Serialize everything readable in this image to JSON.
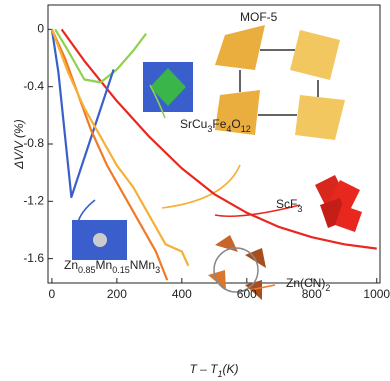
{
  "chart_data": {
    "type": "line",
    "ylabel": "ΔV/V (%)",
    "xlabel_parts": [
      {
        "text": "T – T"
      },
      {
        "text": "1",
        "sub": true
      },
      {
        "text": "(K)"
      }
    ],
    "xlim": [
      -12,
      1010
    ],
    "ylim": [
      -1.77,
      0.17
    ],
    "xticks": [
      0,
      200,
      400,
      600,
      800,
      1000
    ],
    "yticks": [
      0,
      -0.4,
      -0.8,
      -1.2,
      -1.6
    ],
    "series": [
      {
        "label_parts": [
          {
            "text": "ScF"
          },
          {
            "text": "3",
            "sub": true
          }
        ],
        "color": "#e8281e",
        "x": [
          30,
          100,
          200,
          300,
          400,
          500,
          600,
          700,
          800,
          900,
          1000
        ],
        "values": [
          0,
          -0.22,
          -0.5,
          -0.75,
          -0.97,
          -1.15,
          -1.28,
          -1.38,
          -1.45,
          -1.5,
          -1.53
        ]
      },
      {
        "label_parts": [
          {
            "text": "SrCu"
          },
          {
            "text": "3",
            "sub": true
          },
          {
            "text": "Fe"
          },
          {
            "text": "4",
            "sub": true
          },
          {
            "text": "O"
          },
          {
            "text": "12",
            "sub": true
          }
        ],
        "color": "#8fd14f",
        "x": [
          10,
          50,
          100,
          150,
          200,
          250,
          290
        ],
        "values": [
          0,
          -0.15,
          -0.35,
          -0.37,
          -0.28,
          -0.15,
          -0.03
        ]
      },
      {
        "label_parts": [
          {
            "text": "Zn"
          },
          {
            "text": "0.85",
            "sub": true
          },
          {
            "text": "Mn"
          },
          {
            "text": "0.15",
            "sub": true
          },
          {
            "text": "NMn"
          },
          {
            "text": "3",
            "sub": true
          }
        ],
        "color": "#3a5fcd",
        "x": [
          0,
          20,
          60,
          190
        ],
        "values": [
          0,
          -0.3,
          -1.17,
          -0.28
        ]
      },
      {
        "label_parts": [
          {
            "text": "Zn(CN)"
          },
          {
            "text": "2",
            "sub": true
          }
        ],
        "color": "#f07a28",
        "x": [
          0,
          40,
          80,
          120,
          170,
          220,
          270,
          320,
          355
        ],
        "values": [
          0,
          -0.2,
          -0.45,
          -0.7,
          -0.95,
          -1.15,
          -1.35,
          -1.55,
          -1.75
        ]
      },
      {
        "label_parts": [
          {
            "text": "MOF-5"
          }
        ],
        "color": "#f5b035",
        "x": [
          0,
          50,
          100,
          150,
          200,
          250,
          300,
          350,
          400,
          420
        ],
        "values": [
          0,
          -0.3,
          -0.55,
          -0.75,
          -0.95,
          -1.1,
          -1.3,
          -1.5,
          -1.55,
          -1.65
        ]
      }
    ]
  }
}
